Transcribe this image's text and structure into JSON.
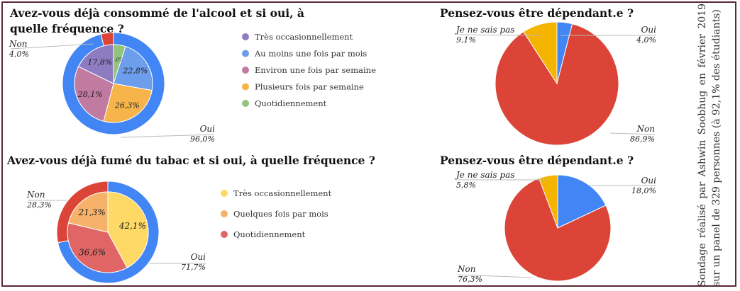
{
  "side_note": "Sondage réalisé par Ashwin Soobhug en février 2019 sur un panel de 329 personnes (à 92,1% des étudiants)",
  "chart_data": [
    {
      "type": "pie",
      "title": "Avez-vous déjà consommé de l'alcool et si oui, à quelle fréquence ?",
      "outer": [
        {
          "label": "Oui",
          "value": 96.0,
          "text": "96,0%",
          "color": "#4285f4"
        },
        {
          "label": "Non",
          "value": 4.0,
          "text": "4,0%",
          "color": "#db4437"
        }
      ],
      "inner": [
        {
          "label": "Quotidiennement",
          "value": 5.0,
          "text": "5,0%",
          "color": "#93c47d"
        },
        {
          "label": "Au moins une fois par mois",
          "value": 22.8,
          "text": "22,8%",
          "color": "#6d9eeb"
        },
        {
          "label": "Plusieurs fois par semaine",
          "value": 26.3,
          "text": "26,3%",
          "color": "#f6b44a"
        },
        {
          "label": "Environ une fois par semaine",
          "value": 28.1,
          "text": "28,1%",
          "color": "#c27ba0"
        },
        {
          "label": "Très occasionnellement",
          "value": 17.8,
          "text": "17,8%",
          "color": "#8e7cc3"
        }
      ],
      "legend": [
        {
          "label": "Très occasionnellement",
          "color": "#8e7cc3"
        },
        {
          "label": "Au moins une fois par mois",
          "color": "#6d9eeb"
        },
        {
          "label": "Environ une fois par semaine",
          "color": "#c27ba0"
        },
        {
          "label": "Plusieurs fois par semaine",
          "color": "#f6b44a"
        },
        {
          "label": "Quotidiennement",
          "color": "#93c47d"
        }
      ]
    },
    {
      "type": "pie",
      "title": "Pensez-vous être dépendant.e ?",
      "slices": [
        {
          "label": "Oui",
          "value": 4.0,
          "text": "4,0%",
          "color": "#4285f4"
        },
        {
          "label": "Non",
          "value": 86.9,
          "text": "86,9%",
          "color": "#db4437"
        },
        {
          "label": "Je ne sais pas",
          "value": 9.1,
          "text": "9,1%",
          "color": "#f4b400"
        }
      ]
    },
    {
      "type": "pie",
      "title": "Avez-vous déjà fumé du tabac et si oui, à quelle fréquence ?",
      "outer": [
        {
          "label": "Oui",
          "value": 71.7,
          "text": "71,7%",
          "color": "#4285f4"
        },
        {
          "label": "Non",
          "value": 28.3,
          "text": "28,3%",
          "color": "#db4437"
        }
      ],
      "inner": [
        {
          "label": "Très occasionnellement",
          "value": 42.1,
          "text": "42,1%",
          "color": "#ffd966"
        },
        {
          "label": "Quotidiennement",
          "value": 36.6,
          "text": "36,6%",
          "color": "#e06666"
        },
        {
          "label": "Quelques fois par mois",
          "value": 21.3,
          "text": "21,3%",
          "color": "#f6b26b"
        }
      ],
      "legend": [
        {
          "label": "Très occasionnellement",
          "color": "#ffd966"
        },
        {
          "label": "Quelques fois par mois",
          "color": "#f6b26b"
        },
        {
          "label": "Quotidiennement",
          "color": "#e06666"
        }
      ]
    },
    {
      "type": "pie",
      "title": "Pensez-vous être dépendant.e ?",
      "slices": [
        {
          "label": "Oui",
          "value": 18.0,
          "text": "18,0%",
          "color": "#4285f4"
        },
        {
          "label": "Non",
          "value": 76.3,
          "text": "76,3%",
          "color": "#db4437"
        },
        {
          "label": "Je ne sais pas",
          "value": 5.8,
          "text": "5,8%",
          "color": "#f4b400"
        }
      ]
    }
  ]
}
